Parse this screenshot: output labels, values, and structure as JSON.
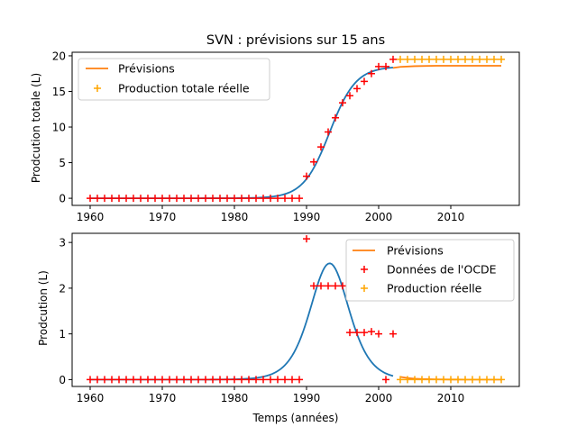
{
  "chart_data": [
    {
      "type": "line",
      "title": "SVN : prévisions sur 15 ans",
      "xlabel": "",
      "ylabel": "Prodcution totale (L)",
      "xlim": [
        1957.5,
        2019.5
      ],
      "ylim": [
        -1,
        20.5
      ],
      "xticks": [
        1960,
        1970,
        1980,
        1990,
        2000,
        2010
      ],
      "yticks": [
        0,
        5,
        10,
        15,
        20
      ],
      "legend_position": "top-left",
      "model_curve": {
        "type": "logistic",
        "K": 18.5,
        "r": 0.55,
        "t0": 1993.2,
        "x_from": 1960,
        "x_to": 2002,
        "color": "#1f77b4"
      },
      "series": [
        {
          "name": "Prévisions",
          "kind": "line",
          "color": "#ff7f0e",
          "x": [
            2002,
            2003,
            2005,
            2008,
            2012,
            2017
          ],
          "y": [
            18.3,
            18.45,
            18.55,
            18.6,
            18.6,
            18.6
          ]
        },
        {
          "name": "Production totale réelle",
          "kind": "marker",
          "color": "#ffa500",
          "x": [
            2003,
            2004,
            2005,
            2006,
            2007,
            2008,
            2009,
            2010,
            2011,
            2012,
            2013,
            2014,
            2015,
            2016,
            2017
          ],
          "y": [
            19.5,
            19.5,
            19.5,
            19.5,
            19.5,
            19.5,
            19.5,
            19.5,
            19.5,
            19.5,
            19.5,
            19.5,
            19.5,
            19.5,
            19.5
          ]
        },
        {
          "name": "",
          "kind": "marker",
          "color": "#ff0000",
          "x": [
            1960,
            1961,
            1962,
            1963,
            1964,
            1965,
            1966,
            1967,
            1968,
            1969,
            1970,
            1971,
            1972,
            1973,
            1974,
            1975,
            1976,
            1977,
            1978,
            1979,
            1980,
            1981,
            1982,
            1983,
            1984,
            1985,
            1986,
            1987,
            1988,
            1989,
            1990,
            1991,
            1992,
            1993,
            1994,
            1995,
            1996,
            1997,
            1998,
            1999,
            2000,
            2001,
            2002
          ],
          "y": [
            0,
            0,
            0,
            0,
            0,
            0,
            0,
            0,
            0,
            0,
            0,
            0,
            0,
            0,
            0,
            0,
            0,
            0,
            0,
            0,
            0,
            0,
            0,
            0,
            0,
            0,
            0,
            0,
            0,
            0,
            3.1,
            5.1,
            7.2,
            9.3,
            11.3,
            13.4,
            14.4,
            15.4,
            16.4,
            17.5,
            18.5,
            18.5,
            19.5
          ]
        }
      ]
    },
    {
      "type": "line",
      "title": "",
      "xlabel": "Temps (années)",
      "ylabel": "Prodcution (L)",
      "xlim": [
        1957.5,
        2019.5
      ],
      "ylim": [
        -0.15,
        3.2
      ],
      "xticks": [
        1960,
        1970,
        1980,
        1990,
        2000,
        2010
      ],
      "yticks": [
        0,
        1,
        2,
        3
      ],
      "legend_position": "top-right",
      "model_curve": {
        "type": "logistic-derivative",
        "K": 18.5,
        "r": 0.55,
        "t0": 1993.2,
        "x_from": 1960,
        "x_to": 2002,
        "color": "#1f77b4"
      },
      "series": [
        {
          "name": "Prévisions",
          "kind": "line",
          "color": "#ff7f0e",
          "x": [
            2003,
            2004,
            2005,
            2006,
            2008,
            2010,
            2012,
            2017
          ],
          "y": [
            0.06,
            0.035,
            0.02,
            0.012,
            0.005,
            0.002,
            0.001,
            0.0
          ]
        },
        {
          "name": "Données de l'OCDE",
          "kind": "marker",
          "color": "#ff0000",
          "x": [
            1960,
            1961,
            1962,
            1963,
            1964,
            1965,
            1966,
            1967,
            1968,
            1969,
            1970,
            1971,
            1972,
            1973,
            1974,
            1975,
            1976,
            1977,
            1978,
            1979,
            1980,
            1981,
            1982,
            1983,
            1984,
            1985,
            1986,
            1987,
            1988,
            1989,
            1990,
            1991,
            1992,
            1993,
            1994,
            1995,
            1996,
            1997,
            1998,
            1999,
            2000,
            2001,
            2002
          ],
          "y": [
            0,
            0,
            0,
            0,
            0,
            0,
            0,
            0,
            0,
            0,
            0,
            0,
            0,
            0,
            0,
            0,
            0,
            0,
            0,
            0,
            0,
            0,
            0,
            0,
            0,
            0,
            0,
            0,
            0,
            0,
            3.08,
            2.05,
            2.05,
            2.05,
            2.05,
            2.05,
            1.03,
            1.03,
            1.03,
            1.05,
            1.0,
            0.0,
            1.0
          ]
        },
        {
          "name": "Production réelle",
          "kind": "marker",
          "color": "#ffa500",
          "x": [
            2003,
            2004,
            2005,
            2006,
            2007,
            2008,
            2009,
            2010,
            2011,
            2012,
            2013,
            2014,
            2015,
            2016,
            2017
          ],
          "y": [
            0,
            0,
            0,
            0,
            0,
            0,
            0,
            0,
            0,
            0,
            0,
            0,
            0,
            0,
            0
          ]
        }
      ]
    }
  ]
}
